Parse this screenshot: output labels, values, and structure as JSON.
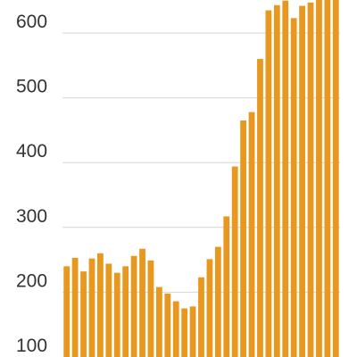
{
  "chart_data": {
    "type": "bar",
    "title": "",
    "xlabel": "",
    "ylabel": "",
    "ylim": [
      100,
      650
    ],
    "yticks": [
      100,
      200,
      300,
      400,
      500,
      600
    ],
    "grid": true,
    "legend": "none",
    "bar_color": "#e8971f",
    "grid_color": "#d6d6d6",
    "values": [
      240,
      253,
      232,
      252,
      260,
      244,
      230,
      240,
      256,
      267,
      249,
      208,
      198,
      186,
      175,
      178,
      223,
      251,
      270,
      317,
      394,
      465,
      478,
      560,
      635,
      643,
      650,
      623,
      642,
      647,
      655,
      656,
      658
    ]
  }
}
